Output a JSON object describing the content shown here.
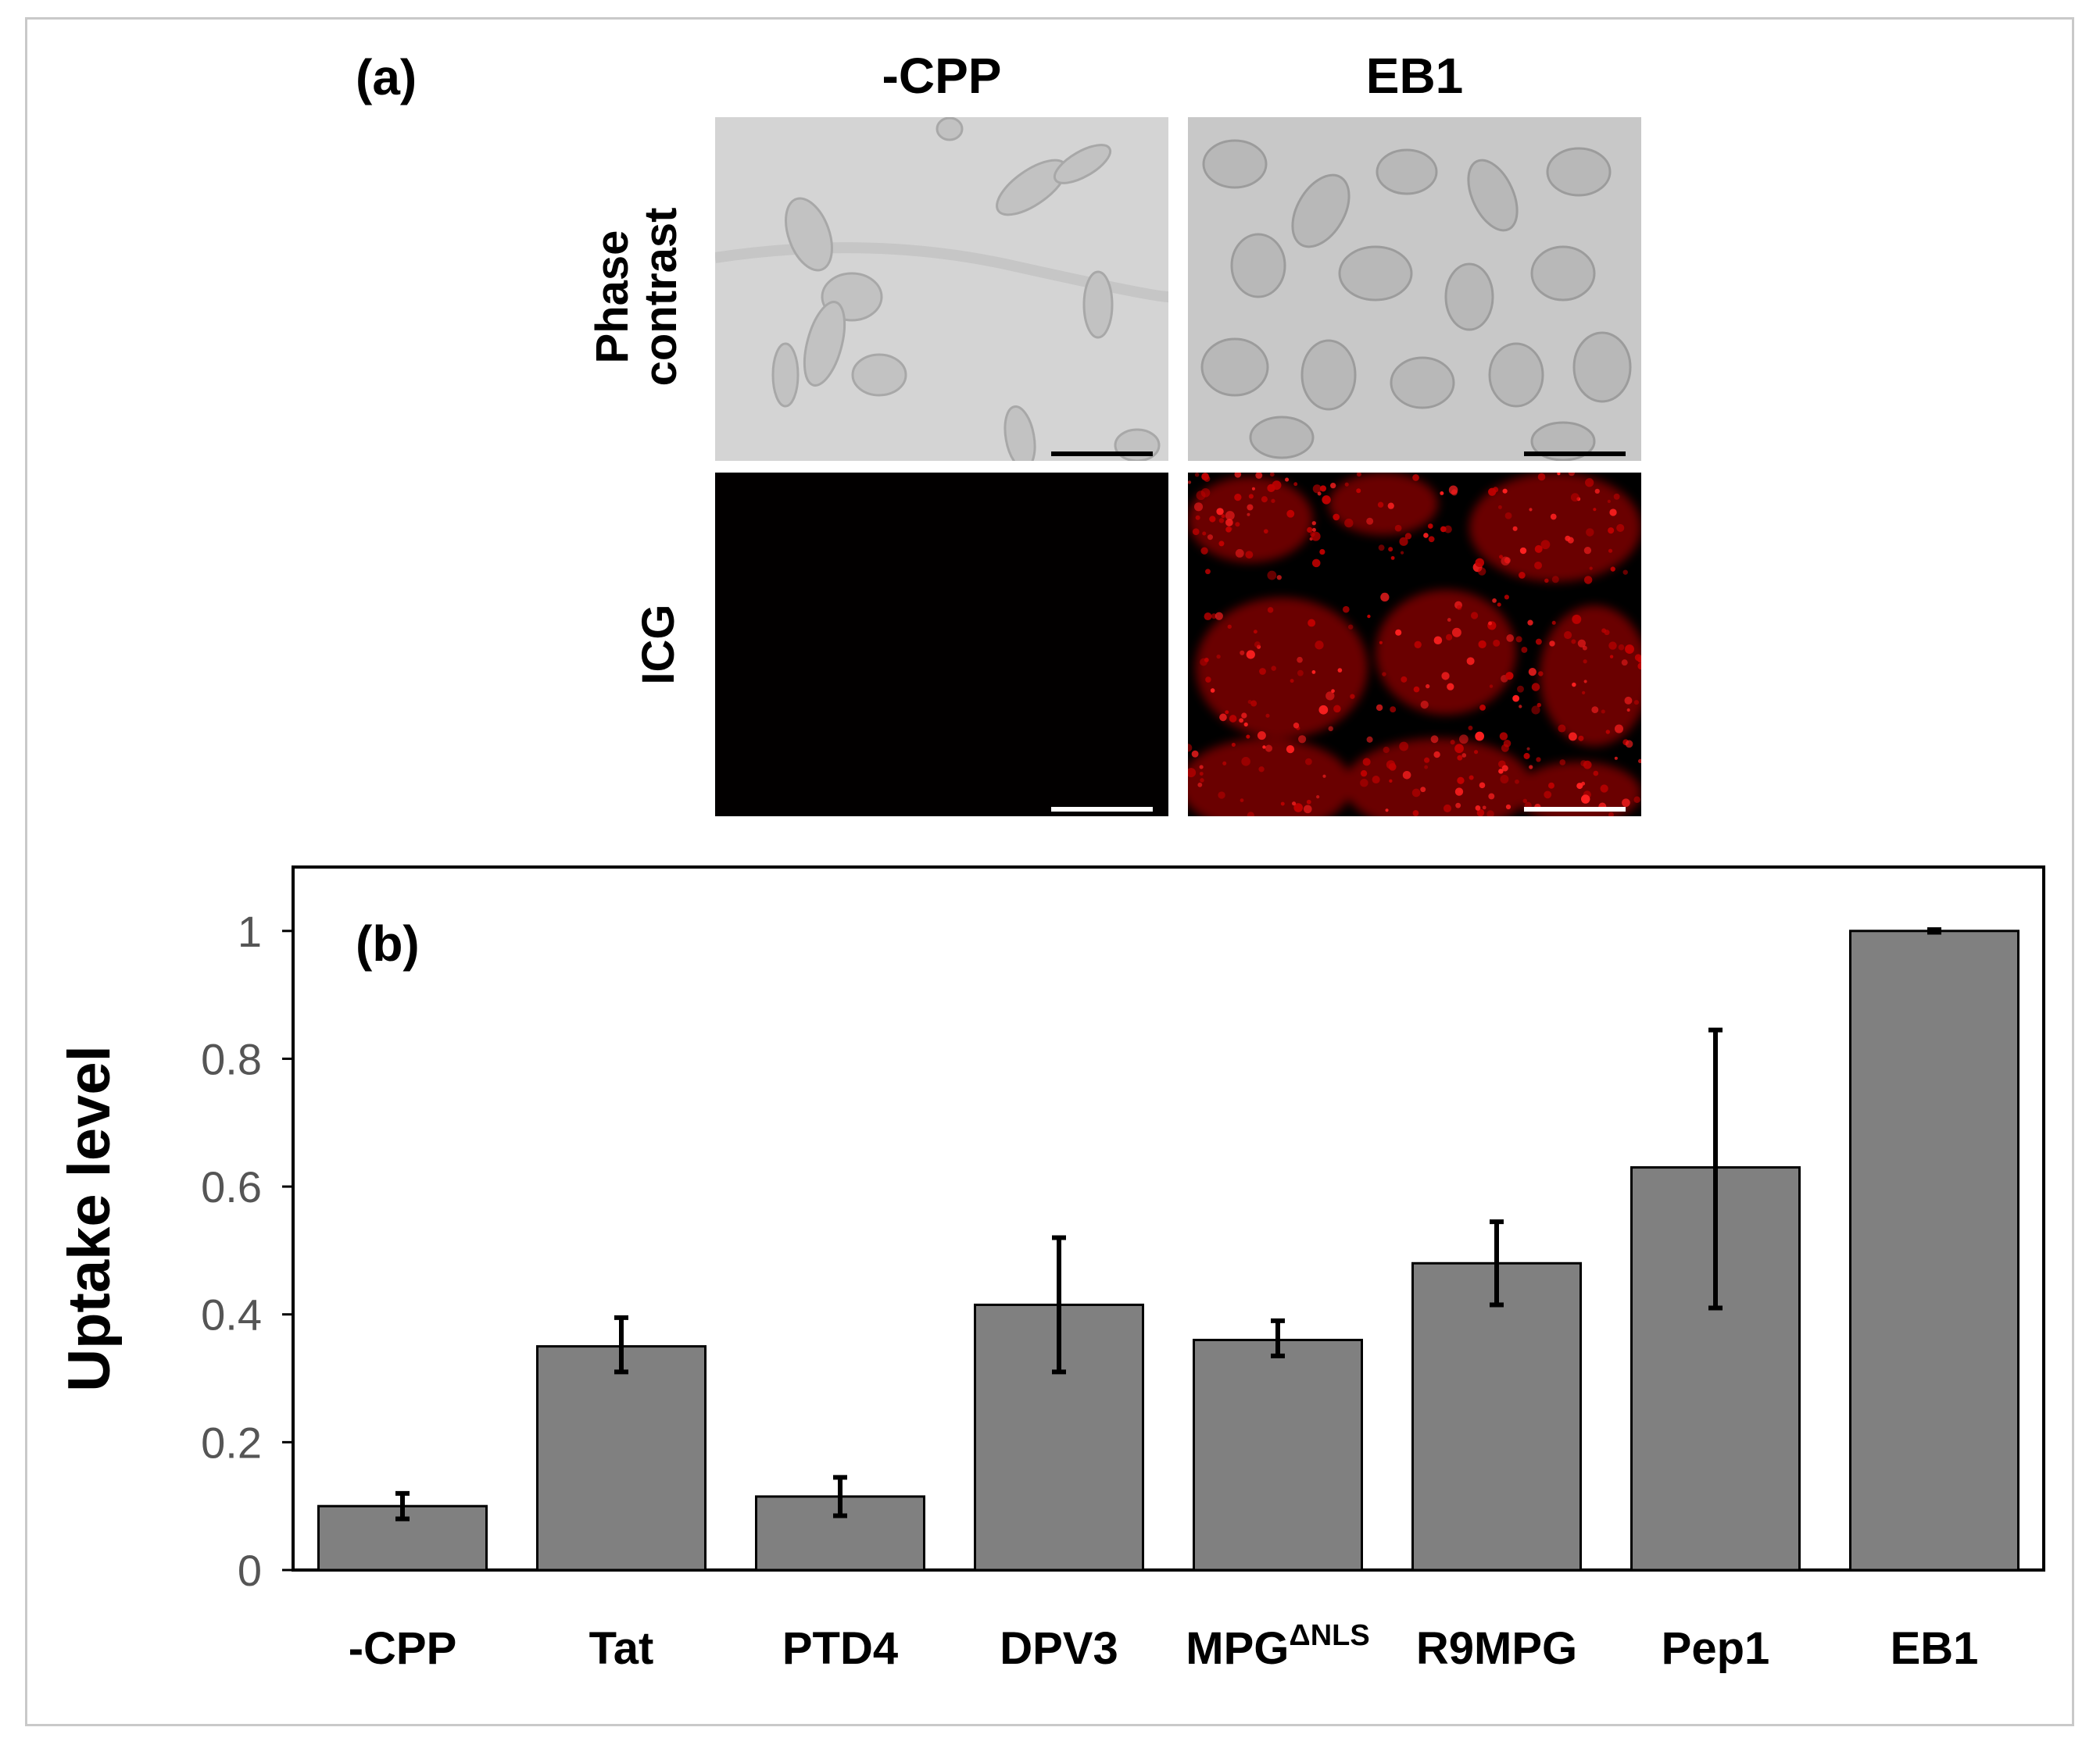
{
  "panel_a": {
    "label": "(a)",
    "columns": [
      "-CPP",
      "EB1"
    ],
    "rows": [
      {
        "name": "phase-contrast",
        "label_lines": [
          "Phase",
          "contrast"
        ]
      },
      {
        "name": "icg",
        "label_lines": [
          "ICG"
        ]
      }
    ]
  },
  "colors": {
    "bar_fill": "#808080",
    "bar_stroke": "#000000",
    "phase_bg": "#cfcfcf",
    "fluor_bg": "#000000",
    "fluor_signal": "#c00000",
    "frame": "#c9c9c9"
  },
  "chart_data": {
    "type": "bar",
    "panel_label": "(b)",
    "title": "",
    "xlabel": "",
    "ylabel": "Uptake level",
    "ylim": [
      0,
      1.1
    ],
    "yticks": [
      0,
      0.2,
      0.4,
      0.6,
      0.8,
      1
    ],
    "ytick_labels": [
      "0",
      "0.2",
      "0.4",
      "0.6",
      "0.8",
      "1"
    ],
    "categories": [
      "-CPP",
      "Tat",
      "PTD4",
      "DPV3",
      "MPG",
      "R9MPG",
      "Pep1",
      "EB1"
    ],
    "category_superscripts": [
      "",
      "",
      "",
      "",
      "ΔNLS",
      "",
      "",
      ""
    ],
    "values": [
      0.1,
      0.35,
      0.115,
      0.415,
      0.36,
      0.48,
      0.63,
      1.0
    ],
    "error_low": [
      0.08,
      0.31,
      0.085,
      0.31,
      0.335,
      0.415,
      0.41,
      0.998
    ],
    "error_high": [
      0.12,
      0.395,
      0.145,
      0.52,
      0.39,
      0.545,
      0.845,
      1.002
    ],
    "grid": false,
    "legend": "none"
  }
}
